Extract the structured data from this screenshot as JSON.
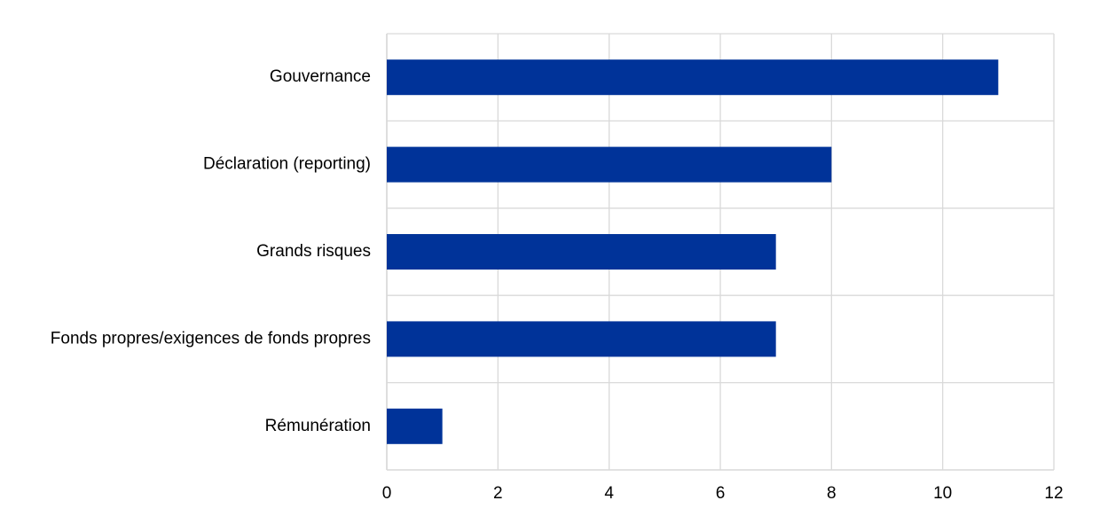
{
  "chart_data": {
    "type": "bar",
    "orientation": "horizontal",
    "categories": [
      "Gouvernance",
      "Déclaration (reporting)",
      "Grands risques",
      "Fonds propres/exigences de fonds propres",
      "Rémunération"
    ],
    "values": [
      11,
      8,
      7,
      7,
      1
    ],
    "color": "#003399",
    "xlim": [
      0,
      12
    ],
    "xticks": [
      0,
      2,
      4,
      6,
      8,
      10,
      12
    ],
    "grid": true
  }
}
